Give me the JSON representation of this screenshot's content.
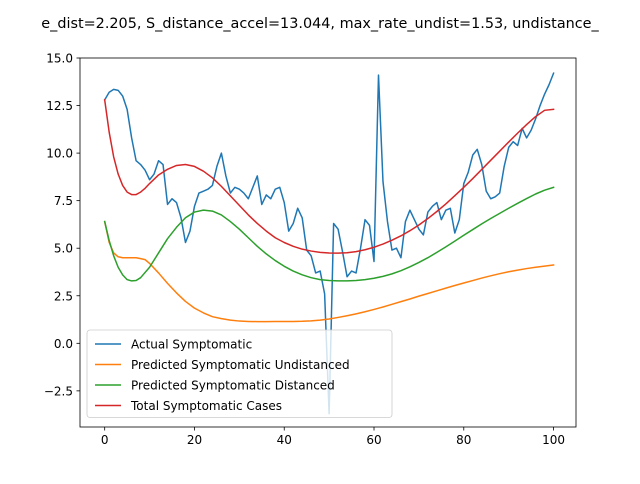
{
  "chart_data": {
    "type": "line",
    "title": "e_dist=2.205, S_distance_accel=13.044, max_rate_undist=1.53, undistance_",
    "xlabel": "",
    "ylabel": "",
    "xlim": [
      -5.5,
      105
    ],
    "ylim": [
      -4.4,
      15.0
    ],
    "xticks": [
      0,
      20,
      40,
      60,
      80,
      100
    ],
    "yticks": [
      -2.5,
      0.0,
      2.5,
      5.0,
      7.5,
      10.0,
      12.5,
      15.0
    ],
    "xtick_labels": [
      "0",
      "20",
      "40",
      "60",
      "80",
      "100"
    ],
    "ytick_labels": [
      "−2.5",
      "0.0",
      "2.5",
      "5.0",
      "7.5",
      "10.0",
      "12.5",
      "15.0"
    ],
    "grid": false,
    "legend_position": "lower-left",
    "series": [
      {
        "name": "Actual Symptomatic",
        "color": "#1f77b4",
        "x": [
          0,
          1,
          2,
          3,
          4,
          5,
          6,
          7,
          8,
          9,
          10,
          11,
          12,
          13,
          14,
          15,
          16,
          17,
          18,
          19,
          20,
          21,
          22,
          23,
          24,
          25,
          26,
          27,
          28,
          29,
          30,
          31,
          32,
          33,
          34,
          35,
          36,
          37,
          38,
          39,
          40,
          41,
          42,
          43,
          44,
          45,
          46,
          47,
          48,
          49,
          50,
          51,
          52,
          53,
          54,
          55,
          56,
          57,
          58,
          59,
          60,
          61,
          62,
          63,
          64,
          65,
          66,
          67,
          68,
          69,
          70,
          71,
          72,
          73,
          74,
          75,
          76,
          77,
          78,
          79,
          80,
          81,
          82,
          83,
          84,
          85,
          86,
          87,
          88,
          89,
          90,
          91,
          92,
          93,
          94,
          95,
          96,
          97,
          98,
          99,
          100
        ],
        "values": [
          12.8,
          13.2,
          13.35,
          13.3,
          13.0,
          12.3,
          10.8,
          9.6,
          9.4,
          9.1,
          8.6,
          8.9,
          9.6,
          9.4,
          7.3,
          7.6,
          7.4,
          6.6,
          5.3,
          5.9,
          7.2,
          7.9,
          8.0,
          8.1,
          8.3,
          9.3,
          10.0,
          8.8,
          7.9,
          8.2,
          8.1,
          7.9,
          7.6,
          8.2,
          8.8,
          7.3,
          7.8,
          7.6,
          8.1,
          8.2,
          7.4,
          5.9,
          6.3,
          7.1,
          6.6,
          4.9,
          4.6,
          3.7,
          3.8,
          2.6,
          -3.7,
          6.3,
          6.0,
          4.8,
          3.5,
          3.8,
          3.7,
          5.0,
          6.5,
          6.2,
          4.3,
          14.1,
          8.5,
          6.4,
          4.9,
          5.0,
          4.5,
          6.4,
          7.0,
          6.5,
          6.0,
          5.7,
          6.9,
          7.2,
          7.4,
          6.5,
          7.0,
          7.1,
          5.8,
          6.5,
          8.4,
          9.0,
          9.9,
          10.2,
          9.4,
          8.0,
          7.6,
          7.7,
          7.9,
          9.3,
          10.3,
          10.6,
          10.4,
          11.3,
          10.8,
          11.2,
          11.8,
          12.5,
          13.1,
          13.6,
          14.2
        ]
      },
      {
        "name": "Predicted Symptomatic Undistanced",
        "color": "#ff7f0e",
        "x": [
          0,
          1,
          2,
          3,
          4,
          5,
          6,
          7,
          8,
          9,
          10,
          12,
          14,
          16,
          18,
          20,
          22,
          24,
          26,
          28,
          30,
          32,
          34,
          36,
          38,
          40,
          42,
          44,
          46,
          48,
          50,
          52,
          54,
          56,
          58,
          60,
          62,
          64,
          66,
          68,
          70,
          72,
          74,
          76,
          78,
          80,
          82,
          84,
          86,
          88,
          90,
          92,
          94,
          96,
          98,
          100
        ],
        "values": [
          6.4,
          5.3,
          4.75,
          4.55,
          4.5,
          4.5,
          4.5,
          4.5,
          4.45,
          4.4,
          4.2,
          3.7,
          3.15,
          2.65,
          2.2,
          1.85,
          1.6,
          1.4,
          1.3,
          1.22,
          1.17,
          1.15,
          1.14,
          1.14,
          1.15,
          1.15,
          1.15,
          1.16,
          1.18,
          1.22,
          1.28,
          1.36,
          1.45,
          1.55,
          1.66,
          1.78,
          1.91,
          2.05,
          2.19,
          2.33,
          2.48,
          2.62,
          2.76,
          2.9,
          3.04,
          3.17,
          3.3,
          3.43,
          3.55,
          3.66,
          3.76,
          3.85,
          3.93,
          4.0,
          4.06,
          4.12
        ]
      },
      {
        "name": "Predicted Symptomatic Distanced",
        "color": "#2ca02c",
        "x": [
          0,
          1,
          2,
          3,
          4,
          5,
          6,
          7,
          8,
          10,
          12,
          14,
          16,
          18,
          20,
          22,
          24,
          26,
          28,
          30,
          32,
          34,
          36,
          38,
          40,
          42,
          44,
          46,
          48,
          50,
          52,
          54,
          56,
          58,
          60,
          62,
          64,
          66,
          68,
          70,
          72,
          74,
          76,
          78,
          80,
          82,
          84,
          86,
          88,
          90,
          92,
          94,
          96,
          98,
          100
        ],
        "values": [
          6.4,
          5.4,
          4.6,
          4.0,
          3.6,
          3.35,
          3.28,
          3.3,
          3.45,
          4.0,
          4.75,
          5.5,
          6.1,
          6.6,
          6.9,
          7.0,
          6.95,
          6.75,
          6.4,
          6.0,
          5.55,
          5.1,
          4.7,
          4.35,
          4.05,
          3.8,
          3.6,
          3.45,
          3.35,
          3.3,
          3.28,
          3.28,
          3.3,
          3.35,
          3.42,
          3.52,
          3.65,
          3.82,
          4.02,
          4.25,
          4.5,
          4.78,
          5.07,
          5.37,
          5.68,
          5.98,
          6.28,
          6.56,
          6.83,
          7.1,
          7.36,
          7.61,
          7.85,
          8.05,
          8.2
        ]
      },
      {
        "name": "Total Symptomatic Cases",
        "color": "#d62728",
        "x": [
          0,
          1,
          2,
          3,
          4,
          5,
          6,
          7,
          8,
          9,
          10,
          12,
          14,
          16,
          18,
          20,
          22,
          24,
          26,
          28,
          30,
          32,
          34,
          36,
          38,
          40,
          42,
          44,
          46,
          48,
          50,
          52,
          54,
          56,
          58,
          60,
          62,
          64,
          66,
          68,
          70,
          72,
          74,
          76,
          78,
          80,
          82,
          84,
          86,
          88,
          90,
          92,
          94,
          96,
          98,
          100
        ],
        "values": [
          12.8,
          11.1,
          9.8,
          8.9,
          8.3,
          7.95,
          7.82,
          7.82,
          7.95,
          8.15,
          8.4,
          8.85,
          9.15,
          9.35,
          9.4,
          9.3,
          9.05,
          8.7,
          8.25,
          7.75,
          7.25,
          6.75,
          6.3,
          5.9,
          5.55,
          5.3,
          5.1,
          4.95,
          4.85,
          4.78,
          4.75,
          4.74,
          4.76,
          4.82,
          4.92,
          5.05,
          5.22,
          5.42,
          5.65,
          5.92,
          6.22,
          6.56,
          6.93,
          7.33,
          7.76,
          8.2,
          8.66,
          9.14,
          9.62,
          10.1,
          10.58,
          11.05,
          11.5,
          11.92,
          12.25,
          12.3
        ]
      }
    ]
  }
}
